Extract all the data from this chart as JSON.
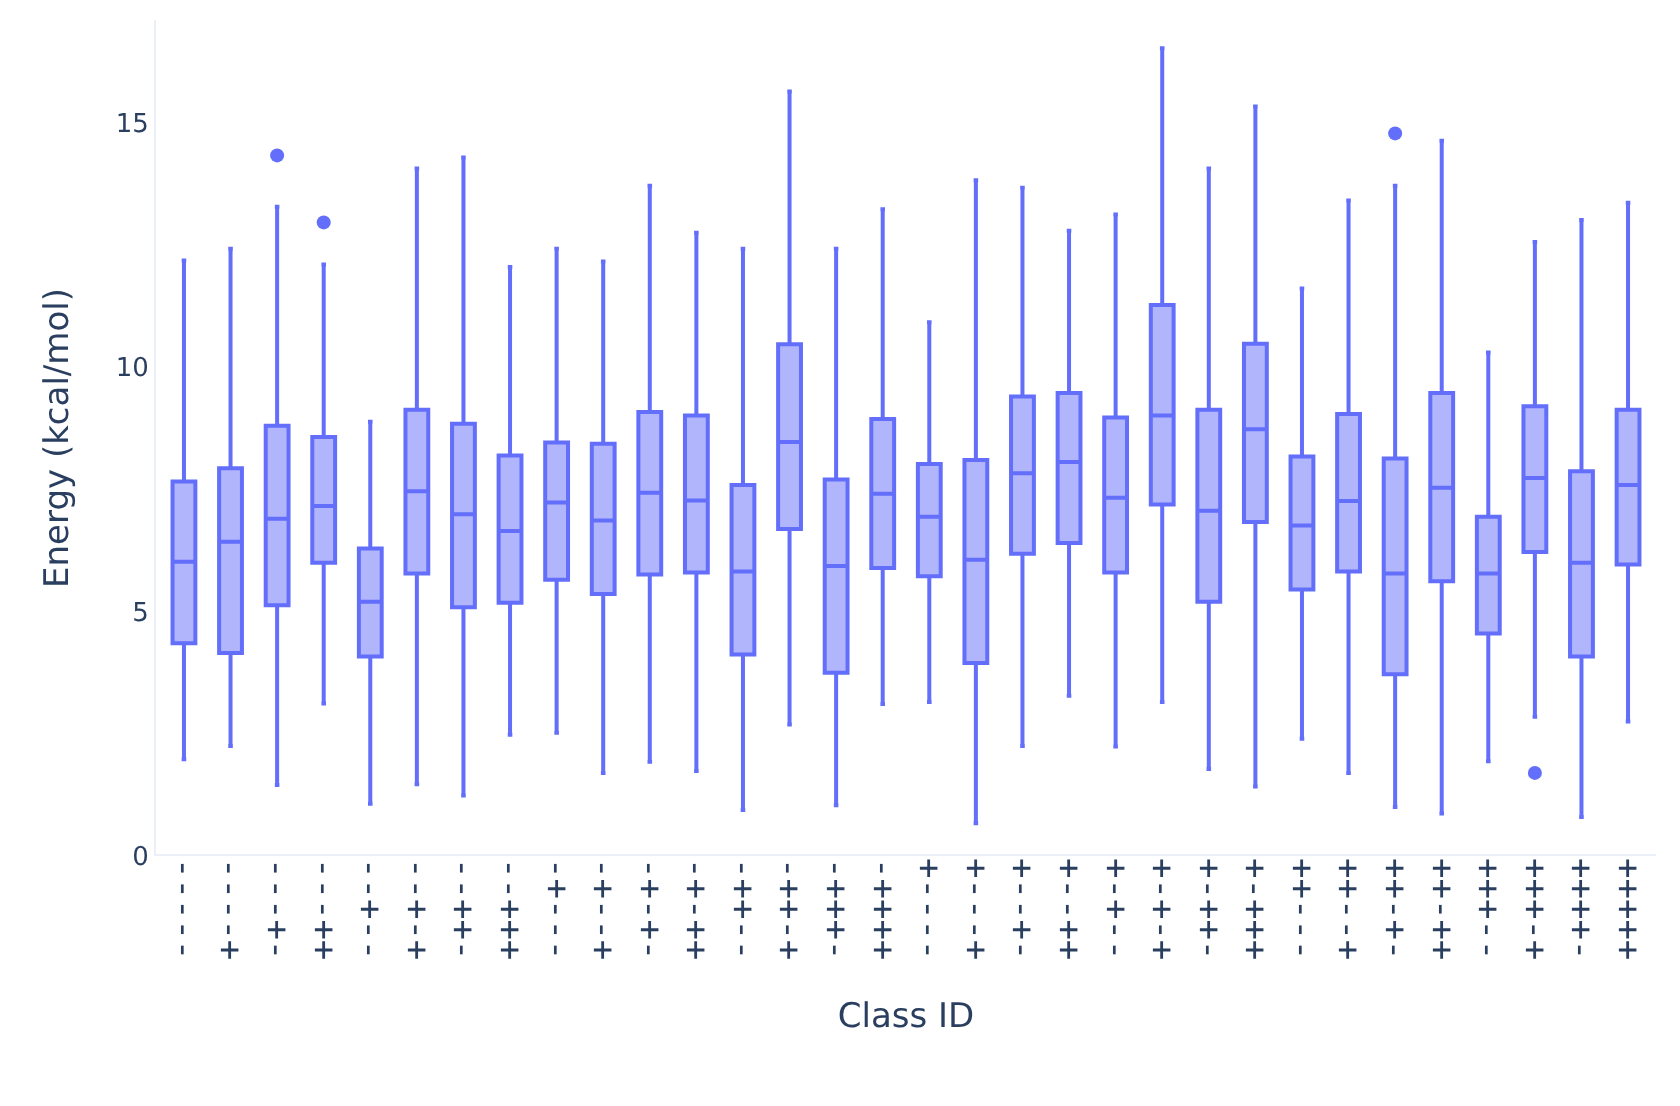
{
  "chart_data": {
    "type": "box",
    "xlabel": "Class ID",
    "ylabel": "Energy (kcal/mol)",
    "categories": [
      "-----",
      "----+",
      "---+-",
      "---++",
      "--+--",
      "--+-+",
      "--++-",
      "--+++",
      "-+---",
      "-+--+",
      "-+-+-",
      "-+-++",
      "-++--",
      "-++-+",
      "-+++-",
      "-++++",
      "+----",
      "+---+",
      "+--+-",
      "+--++",
      "+-+--",
      "+-+-+",
      "+-++-",
      "+-+++",
      "++---",
      "++--+",
      "++-+-",
      "++-++",
      "+++--",
      "+++-+",
      "++++-",
      "+++++"
    ],
    "series": [
      {
        "color": "#636efa",
        "boxes": [
          {
            "low": 1.98,
            "q1": 4.35,
            "median": 6.02,
            "q3": 7.66,
            "high": 12.18
          },
          {
            "low": 2.25,
            "q1": 4.15,
            "median": 6.43,
            "q3": 7.93,
            "high": 12.42
          },
          {
            "low": 1.45,
            "q1": 5.13,
            "median": 6.9,
            "q3": 8.8,
            "high": 13.28,
            "outliers": [
              14.33
            ]
          },
          {
            "low": 3.12,
            "q1": 6.0,
            "median": 7.16,
            "q3": 8.57,
            "high": 12.1,
            "outliers": [
              12.96
            ]
          },
          {
            "low": 1.07,
            "q1": 4.08,
            "median": 5.2,
            "q3": 6.29,
            "high": 8.88
          },
          {
            "low": 1.47,
            "q1": 5.78,
            "median": 7.46,
            "q3": 9.13,
            "high": 14.06
          },
          {
            "low": 1.24,
            "q1": 5.09,
            "median": 6.99,
            "q3": 8.84,
            "high": 14.29
          },
          {
            "low": 2.48,
            "q1": 5.18,
            "median": 6.65,
            "q3": 8.19,
            "high": 12.05
          },
          {
            "low": 2.52,
            "q1": 5.65,
            "median": 7.23,
            "q3": 8.46,
            "high": 12.42
          },
          {
            "low": 1.7,
            "q1": 5.36,
            "median": 6.86,
            "q3": 8.43,
            "high": 12.16
          },
          {
            "low": 1.93,
            "q1": 5.76,
            "median": 7.43,
            "q3": 9.08,
            "high": 13.71
          },
          {
            "low": 1.74,
            "q1": 5.8,
            "median": 7.27,
            "q3": 9.01,
            "high": 12.75
          },
          {
            "low": 0.94,
            "q1": 4.12,
            "median": 5.82,
            "q3": 7.59,
            "high": 12.42
          },
          {
            "low": 2.69,
            "q1": 6.69,
            "median": 8.47,
            "q3": 10.47,
            "high": 15.64
          },
          {
            "low": 1.04,
            "q1": 3.75,
            "median": 5.93,
            "q3": 7.7,
            "high": 12.42
          },
          {
            "low": 3.11,
            "q1": 5.89,
            "median": 7.41,
            "q3": 8.94,
            "high": 13.23
          },
          {
            "low": 3.15,
            "q1": 5.72,
            "median": 6.94,
            "q3": 8.02,
            "high": 10.92
          },
          {
            "low": 0.67,
            "q1": 3.95,
            "median": 6.06,
            "q3": 8.1,
            "high": 13.82
          },
          {
            "low": 2.25,
            "q1": 6.18,
            "median": 7.83,
            "q3": 9.4,
            "high": 13.67
          },
          {
            "low": 3.28,
            "q1": 6.4,
            "median": 8.06,
            "q3": 9.47,
            "high": 12.79
          },
          {
            "low": 2.24,
            "q1": 5.8,
            "median": 7.33,
            "q3": 8.97,
            "high": 13.12
          },
          {
            "low": 3.15,
            "q1": 7.19,
            "median": 9.01,
            "q3": 11.27,
            "high": 16.52
          },
          {
            "low": 1.78,
            "q1": 5.2,
            "median": 7.06,
            "q3": 9.13,
            "high": 14.06
          },
          {
            "low": 1.42,
            "q1": 6.83,
            "median": 8.73,
            "q3": 10.48,
            "high": 15.33
          },
          {
            "low": 2.4,
            "q1": 5.45,
            "median": 6.76,
            "q3": 8.17,
            "high": 11.61
          },
          {
            "low": 1.7,
            "q1": 5.82,
            "median": 7.26,
            "q3": 9.04,
            "high": 13.41
          },
          {
            "low": 1.0,
            "q1": 3.72,
            "median": 5.78,
            "q3": 8.13,
            "high": 13.71,
            "outliers": [
              14.78
            ]
          },
          {
            "low": 0.87,
            "q1": 5.62,
            "median": 7.53,
            "q3": 9.47,
            "high": 14.63
          },
          {
            "low": 1.94,
            "q1": 4.55,
            "median": 5.78,
            "q3": 6.94,
            "high": 10.3
          },
          {
            "low": 2.85,
            "q1": 6.22,
            "median": 7.73,
            "q3": 9.2,
            "high": 12.56,
            "outliers": [
              1.7
            ]
          },
          {
            "low": 0.8,
            "q1": 4.08,
            "median": 6.0,
            "q3": 7.87,
            "high": 13.01
          },
          {
            "low": 2.75,
            "q1": 5.96,
            "median": 7.59,
            "q3": 9.13,
            "high": 13.36
          }
        ]
      }
    ],
    "ylim": [
      0,
      17.1
    ],
    "yticks": [
      0,
      5,
      10,
      15
    ],
    "grid": false
  }
}
